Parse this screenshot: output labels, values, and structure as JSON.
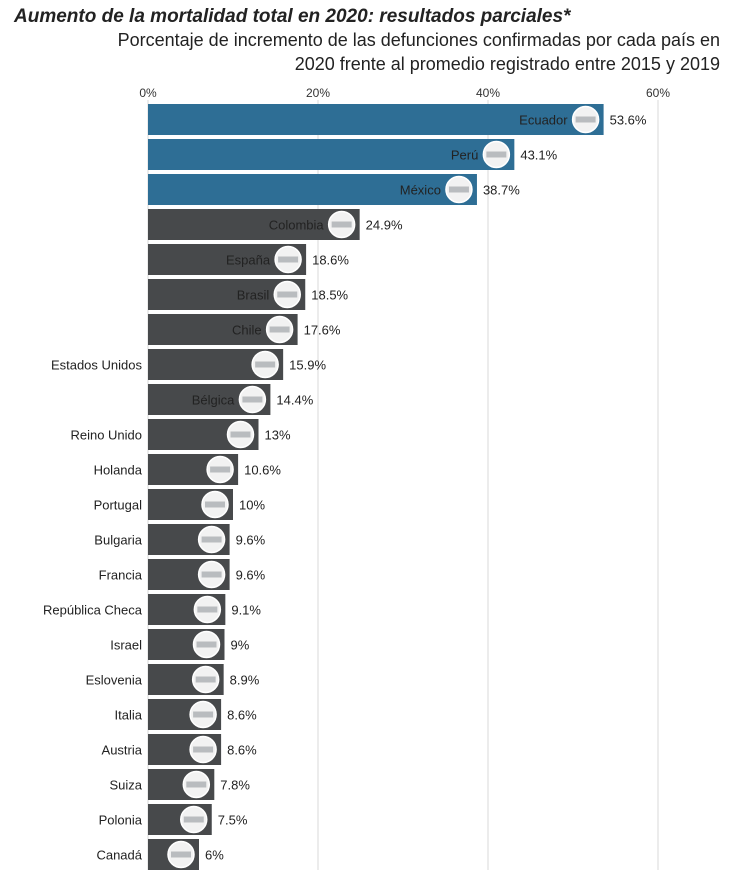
{
  "chart_data": {
    "type": "bar",
    "orientation": "horizontal",
    "title": "Aumento de la mortalidad total en 2020: resultados parciales*",
    "subtitle_lines": [
      "Porcentaje de incremento de las defunciones confirmadas por cada país en",
      "2020 frente al promedio registrado entre 2015 y 2019"
    ],
    "xlim": [
      0,
      60
    ],
    "xticks": [
      "0%",
      "20%",
      "40%",
      "60%"
    ],
    "grid": true,
    "categories": [
      "Ecuador",
      "Perú",
      "México",
      "Colombia",
      "España",
      "Brasil",
      "Chile",
      "Estados Unidos",
      "Bélgica",
      "Reino Unido",
      "Holanda",
      "Portugal",
      "Bulgaria",
      "Francia",
      "República Checa",
      "Israel",
      "Eslovenia",
      "Italia",
      "Austria",
      "Suiza",
      "Polonia",
      "Canadá"
    ],
    "values": [
      53.6,
      43.1,
      38.7,
      24.9,
      18.6,
      18.5,
      17.6,
      15.9,
      14.4,
      13.0,
      10.6,
      10.0,
      9.6,
      9.6,
      9.1,
      9.0,
      8.9,
      8.6,
      8.6,
      7.8,
      7.5,
      6.0
    ],
    "value_labels": [
      "53.6%",
      "43.1%",
      "38.7%",
      "24.9%",
      "18.6%",
      "18.5%",
      "17.6%",
      "15.9%",
      "14.4%",
      "13%",
      "10.6%",
      "10%",
      "9.6%",
      "9.6%",
      "9.1%",
      "9%",
      "8.9%",
      "8.6%",
      "8.6%",
      "7.8%",
      "7.5%",
      "6%"
    ],
    "flag_icons": [
      "ecuador-flag-icon",
      "peru-flag-icon",
      "mexico-flag-icon",
      "colombia-flag-icon",
      "spain-flag-icon",
      "brazil-flag-icon",
      "chile-flag-icon",
      "usa-flag-icon",
      "belgium-flag-icon",
      "uk-flag-icon",
      "netherlands-flag-icon",
      "portugal-flag-icon",
      "bulgaria-flag-icon",
      "france-flag-icon",
      "czech-flag-icon",
      "israel-flag-icon",
      "slovenia-flag-icon",
      "italy-flag-icon",
      "austria-flag-icon",
      "switzerland-flag-icon",
      "poland-flag-icon",
      "canada-flag-icon"
    ],
    "highlighted_count": 3,
    "colors": {
      "highlight_bar": "#2e6e95",
      "bar": "#47494b",
      "grid": "#d8d8d8",
      "text": "#222222",
      "baseline_fill": "#c9f4fa"
    }
  }
}
